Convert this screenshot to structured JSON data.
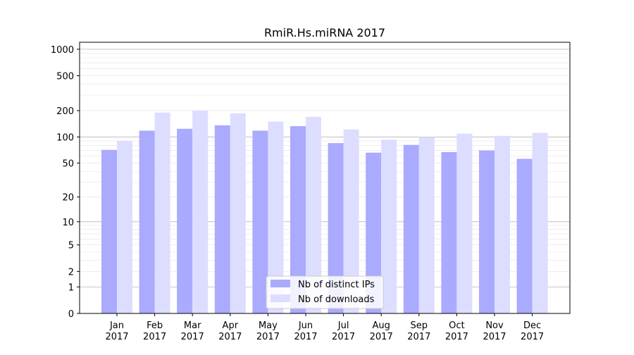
{
  "chart_data": {
    "type": "bar",
    "title": "RmiR.Hs.miRNA 2017",
    "xlabel": "",
    "ylabel": "",
    "yscale": "log1p",
    "ylim": [
      0,
      1200
    ],
    "yticks": [
      0,
      1,
      2,
      5,
      10,
      20,
      50,
      100,
      200,
      500,
      1000
    ],
    "grid": true,
    "legend_position": "bottom-center",
    "categories": [
      [
        "Jan",
        "2017"
      ],
      [
        "Feb",
        "2017"
      ],
      [
        "Mar",
        "2017"
      ],
      [
        "Apr",
        "2017"
      ],
      [
        "May",
        "2017"
      ],
      [
        "Jun",
        "2017"
      ],
      [
        "Jul",
        "2017"
      ],
      [
        "Aug",
        "2017"
      ],
      [
        "Sep",
        "2017"
      ],
      [
        "Oct",
        "2017"
      ],
      [
        "Nov",
        "2017"
      ],
      [
        "Dec",
        "2017"
      ]
    ],
    "series": [
      {
        "name": "Nb of distinct IPs",
        "color": "#aaaaff",
        "values": [
          71,
          118,
          124,
          136,
          118,
          133,
          85,
          66,
          81,
          67,
          70,
          56
        ]
      },
      {
        "name": "Nb of downloads",
        "color": "#ddddff",
        "values": [
          90,
          190,
          201,
          186,
          150,
          170,
          122,
          93,
          100,
          109,
          103,
          111
        ]
      }
    ]
  }
}
